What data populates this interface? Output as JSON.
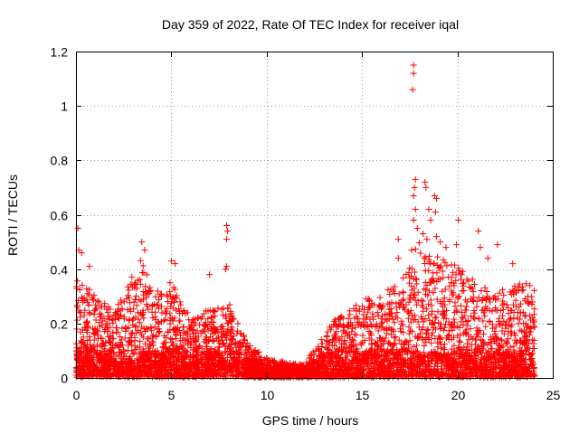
{
  "chart_data": {
    "type": "scatter",
    "title": "Day 359 of 2022, Rate Of TEC Index for receiver iqal",
    "xlabel": "GPS time / hours",
    "ylabel": "ROTI / TECUs",
    "xlim": [
      0,
      25
    ],
    "ylim": [
      0,
      1.2
    ],
    "xticks": [
      0,
      5,
      10,
      15,
      20,
      25
    ],
    "xtick_labels": [
      "0",
      "5",
      "10",
      "15",
      "20",
      "25"
    ],
    "yticks": [
      0,
      0.2,
      0.4,
      0.6,
      0.8,
      1,
      1.2
    ],
    "ytick_labels": [
      "0",
      "0.2",
      "0.4",
      "0.6",
      "0.8",
      "1",
      "1.2"
    ],
    "grid": true,
    "marker": "+",
    "marker_color": "#ff0000",
    "density_profile": [
      {
        "hour": 0.0,
        "peak": 0.38
      },
      {
        "hour": 1.0,
        "peak": 0.3
      },
      {
        "hour": 2.0,
        "peak": 0.25
      },
      {
        "hour": 3.0,
        "peak": 0.38
      },
      {
        "hour": 3.5,
        "peak": 0.45
      },
      {
        "hour": 4.0,
        "peak": 0.3
      },
      {
        "hour": 5.0,
        "peak": 0.35
      },
      {
        "hour": 6.0,
        "peak": 0.22
      },
      {
        "hour": 7.0,
        "peak": 0.25
      },
      {
        "hour": 8.0,
        "peak": 0.28
      },
      {
        "hour": 9.0,
        "peak": 0.12
      },
      {
        "hour": 10.0,
        "peak": 0.07
      },
      {
        "hour": 11.0,
        "peak": 0.05
      },
      {
        "hour": 12.0,
        "peak": 0.05
      },
      {
        "hour": 13.0,
        "peak": 0.15
      },
      {
        "hour": 14.0,
        "peak": 0.25
      },
      {
        "hour": 15.0,
        "peak": 0.28
      },
      {
        "hour": 16.0,
        "peak": 0.3
      },
      {
        "hour": 17.0,
        "peak": 0.35
      },
      {
        "hour": 18.0,
        "peak": 0.5
      },
      {
        "hour": 19.0,
        "peak": 0.45
      },
      {
        "hour": 20.0,
        "peak": 0.4
      },
      {
        "hour": 21.0,
        "peak": 0.35
      },
      {
        "hour": 22.0,
        "peak": 0.3
      },
      {
        "hour": 23.0,
        "peak": 0.35
      },
      {
        "hour": 24.0,
        "peak": 0.33
      }
    ],
    "notable_points": [
      {
        "x": 0.1,
        "y": 0.55
      },
      {
        "x": 0.15,
        "y": 0.47
      },
      {
        "x": 0.3,
        "y": 0.46
      },
      {
        "x": 0.7,
        "y": 0.41
      },
      {
        "x": 3.45,
        "y": 0.5
      },
      {
        "x": 3.6,
        "y": 0.47
      },
      {
        "x": 5.0,
        "y": 0.43
      },
      {
        "x": 5.2,
        "y": 0.42
      },
      {
        "x": 7.0,
        "y": 0.38
      },
      {
        "x": 7.9,
        "y": 0.56
      },
      {
        "x": 7.95,
        "y": 0.54
      },
      {
        "x": 7.9,
        "y": 0.51
      },
      {
        "x": 7.9,
        "y": 0.41
      },
      {
        "x": 7.85,
        "y": 0.4
      },
      {
        "x": 16.9,
        "y": 0.51
      },
      {
        "x": 16.9,
        "y": 0.44
      },
      {
        "x": 17.7,
        "y": 1.15
      },
      {
        "x": 17.7,
        "y": 1.12
      },
      {
        "x": 17.65,
        "y": 1.06
      },
      {
        "x": 17.8,
        "y": 0.73
      },
      {
        "x": 17.75,
        "y": 0.7
      },
      {
        "x": 17.7,
        "y": 0.67
      },
      {
        "x": 17.8,
        "y": 0.62
      },
      {
        "x": 17.7,
        "y": 0.58
      },
      {
        "x": 17.9,
        "y": 0.55
      },
      {
        "x": 17.6,
        "y": 0.47
      },
      {
        "x": 18.3,
        "y": 0.72
      },
      {
        "x": 18.35,
        "y": 0.7
      },
      {
        "x": 18.5,
        "y": 0.62
      },
      {
        "x": 18.6,
        "y": 0.58
      },
      {
        "x": 18.8,
        "y": 0.67
      },
      {
        "x": 18.9,
        "y": 0.66
      },
      {
        "x": 18.85,
        "y": 0.61
      },
      {
        "x": 18.2,
        "y": 0.53
      },
      {
        "x": 18.4,
        "y": 0.51
      },
      {
        "x": 18.9,
        "y": 0.52
      },
      {
        "x": 19.1,
        "y": 0.5
      },
      {
        "x": 19.4,
        "y": 0.48
      },
      {
        "x": 20.05,
        "y": 0.58
      },
      {
        "x": 19.95,
        "y": 0.49
      },
      {
        "x": 21.1,
        "y": 0.54
      },
      {
        "x": 21.2,
        "y": 0.48
      },
      {
        "x": 21.6,
        "y": 0.44
      },
      {
        "x": 22.1,
        "y": 0.49
      },
      {
        "x": 22.9,
        "y": 0.42
      },
      {
        "x": 23.8,
        "y": 0.34
      }
    ],
    "random_seed": 359
  }
}
